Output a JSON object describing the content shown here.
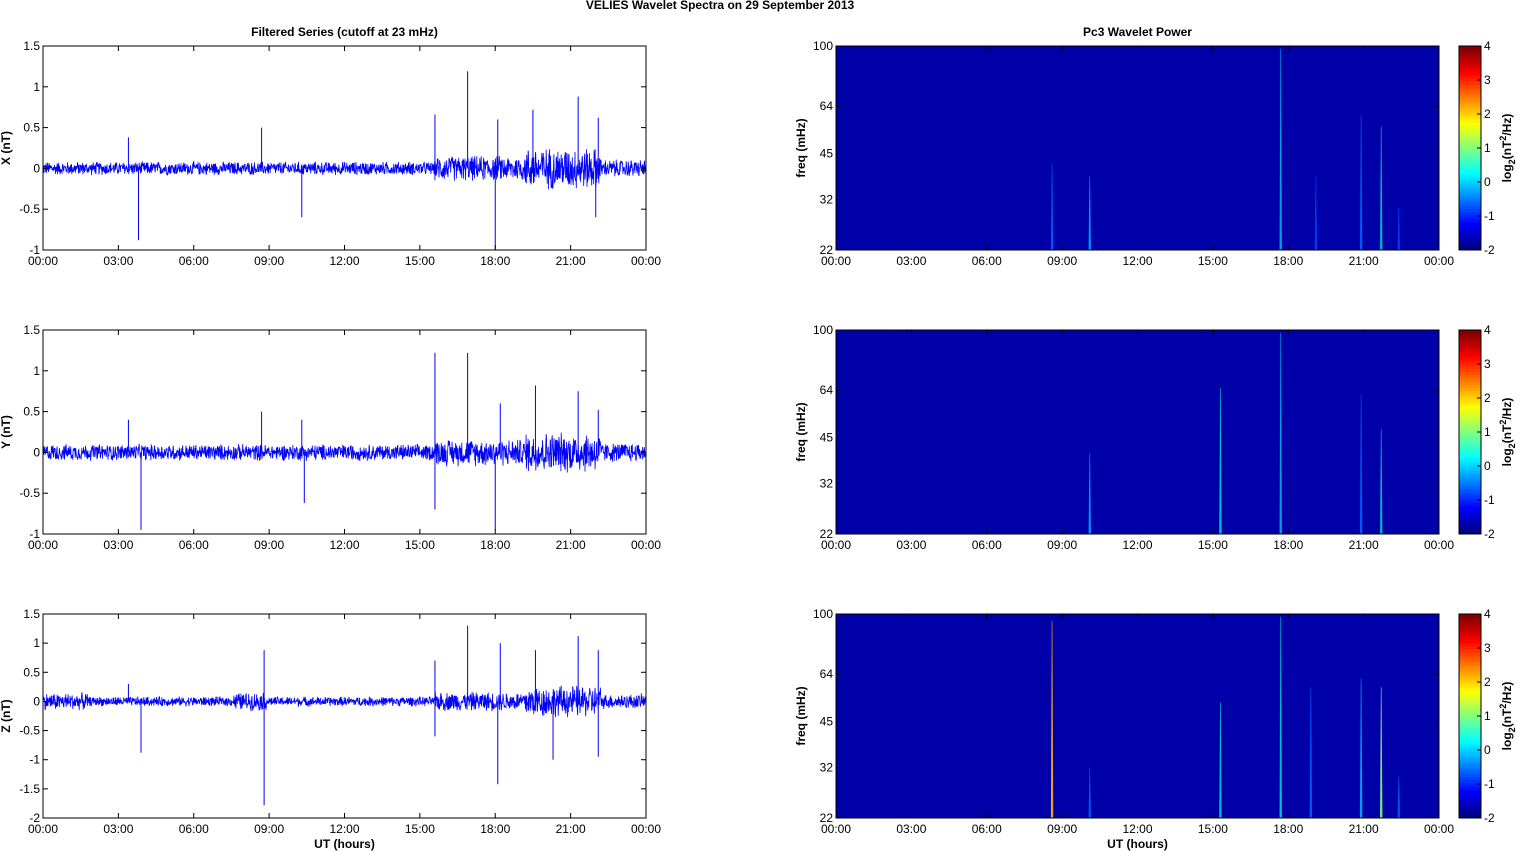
{
  "title": "VELIES Wavelet Spectra on 29 September 2013",
  "chart_data": [
    {
      "id": "filt-x",
      "type": "line",
      "title": "Filtered Series (cutoff at 23 mHz)",
      "ylabel": "X (nT)",
      "xlabel": "",
      "xlim": [
        0,
        24
      ],
      "ylim": [
        -1,
        1.5
      ],
      "yticks": [
        -1,
        -0.5,
        0,
        0.5,
        1,
        1.5
      ],
      "xticklabels": [
        "00:00",
        "03:00",
        "06:00",
        "09:00",
        "12:00",
        "15:00",
        "18:00",
        "21:00",
        "00:00"
      ],
      "color": "#0000ff",
      "envelope": [
        {
          "from": 0,
          "to": 15.6,
          "amp": 0.09
        },
        {
          "from": 15.6,
          "to": 19.2,
          "amp": 0.17
        },
        {
          "from": 19.2,
          "to": 22.2,
          "amp": 0.28
        },
        {
          "from": 22.2,
          "to": 24,
          "amp": 0.12
        }
      ],
      "spikes": [
        {
          "x": 3.4,
          "y": 0.38
        },
        {
          "x": 3.8,
          "y": -0.88
        },
        {
          "x": 8.7,
          "y": 0.5
        },
        {
          "x": 10.3,
          "y": -0.6
        },
        {
          "x": 15.6,
          "y": 0.66
        },
        {
          "x": 16.9,
          "y": 1.19
        },
        {
          "x": 18.0,
          "y": -1.0
        },
        {
          "x": 18.1,
          "y": 0.6
        },
        {
          "x": 19.5,
          "y": 0.72
        },
        {
          "x": 21.3,
          "y": 0.88
        },
        {
          "x": 22.1,
          "y": 0.62
        },
        {
          "x": 22.0,
          "y": -0.6
        }
      ]
    },
    {
      "id": "filt-y",
      "type": "line",
      "title": "",
      "ylabel": "Y (nT)",
      "xlabel": "",
      "xlim": [
        0,
        24
      ],
      "ylim": [
        -1,
        1.5
      ],
      "yticks": [
        -1,
        -0.5,
        0,
        0.5,
        1,
        1.5
      ],
      "xticklabels": [
        "00:00",
        "03:00",
        "06:00",
        "09:00",
        "12:00",
        "15:00",
        "18:00",
        "21:00",
        "00:00"
      ],
      "color": "#0000ff",
      "envelope": [
        {
          "from": 0,
          "to": 15.6,
          "amp": 0.11
        },
        {
          "from": 15.6,
          "to": 19.2,
          "amp": 0.18
        },
        {
          "from": 19.2,
          "to": 22.2,
          "amp": 0.27
        },
        {
          "from": 22.2,
          "to": 24,
          "amp": 0.13
        }
      ],
      "spikes": [
        {
          "x": 3.4,
          "y": 0.4
        },
        {
          "x": 3.9,
          "y": -0.95
        },
        {
          "x": 8.7,
          "y": 0.5
        },
        {
          "x": 10.3,
          "y": 0.4
        },
        {
          "x": 10.4,
          "y": -0.62
        },
        {
          "x": 15.6,
          "y": 1.22
        },
        {
          "x": 15.6,
          "y": -0.7
        },
        {
          "x": 16.9,
          "y": 1.22
        },
        {
          "x": 18.0,
          "y": -0.95
        },
        {
          "x": 18.2,
          "y": 0.6
        },
        {
          "x": 19.6,
          "y": 0.82
        },
        {
          "x": 21.3,
          "y": 0.75
        },
        {
          "x": 22.1,
          "y": 0.52
        }
      ]
    },
    {
      "id": "filt-z",
      "type": "line",
      "title": "",
      "ylabel": "Z (nT)",
      "xlabel": "UT (hours)",
      "xlim": [
        0,
        24
      ],
      "ylim": [
        -2,
        1.5
      ],
      "yticks": [
        -2,
        -1.5,
        -1,
        -0.5,
        0,
        0.5,
        1,
        1.5
      ],
      "xticklabels": [
        "00:00",
        "03:00",
        "06:00",
        "09:00",
        "12:00",
        "15:00",
        "18:00",
        "21:00",
        "00:00"
      ],
      "color": "#0000ff",
      "envelope": [
        {
          "from": 0,
          "to": 1.8,
          "amp": 0.16
        },
        {
          "from": 1.8,
          "to": 7.6,
          "amp": 0.09
        },
        {
          "from": 7.6,
          "to": 8.9,
          "amp": 0.17
        },
        {
          "from": 8.9,
          "to": 15.6,
          "amp": 0.09
        },
        {
          "from": 15.6,
          "to": 19.2,
          "amp": 0.18
        },
        {
          "from": 19.2,
          "to": 22.2,
          "amp": 0.3
        },
        {
          "from": 22.2,
          "to": 24,
          "amp": 0.14
        }
      ],
      "spikes": [
        {
          "x": 3.4,
          "y": 0.3
        },
        {
          "x": 3.9,
          "y": -0.88
        },
        {
          "x": 8.8,
          "y": 0.88
        },
        {
          "x": 8.8,
          "y": -1.78
        },
        {
          "x": 15.6,
          "y": 0.7
        },
        {
          "x": 15.6,
          "y": -0.6
        },
        {
          "x": 16.9,
          "y": 1.3
        },
        {
          "x": 18.1,
          "y": -1.42
        },
        {
          "x": 18.2,
          "y": 1.0
        },
        {
          "x": 19.6,
          "y": 0.88
        },
        {
          "x": 21.3,
          "y": 1.12
        },
        {
          "x": 22.1,
          "y": 0.88
        },
        {
          "x": 22.1,
          "y": -0.95
        },
        {
          "x": 20.3,
          "y": -1.0
        }
      ]
    },
    {
      "id": "wav-x",
      "type": "heatmap",
      "title": "Pc3 Wavelet Power",
      "ylabel": "freq (mHz)",
      "xlabel": "",
      "xlim": [
        0,
        24
      ],
      "ylim": [
        22,
        100
      ],
      "yscale": "log",
      "yticks": [
        22,
        32,
        45,
        64,
        100
      ],
      "xticklabels": [
        "00:00",
        "03:00",
        "06:00",
        "09:00",
        "12:00",
        "15:00",
        "18:00",
        "21:00",
        "00:00"
      ],
      "background": "#0000a8",
      "clim": [
        -2,
        4
      ],
      "cticks": [
        -2,
        -1,
        0,
        1,
        2,
        3,
        4
      ],
      "colorbar_label": "log2(nT2/Hz)",
      "streaks": [
        {
          "t": 8.6,
          "fmin": 22,
          "fmax": 42,
          "color": "#0060ff"
        },
        {
          "t": 10.1,
          "fmin": 22,
          "fmax": 38,
          "color": "#00a0ff"
        },
        {
          "t": 17.7,
          "fmin": 22,
          "fmax": 98,
          "color": "#00b0e0"
        },
        {
          "t": 19.1,
          "fmin": 22,
          "fmax": 38,
          "color": "#0040ff"
        },
        {
          "t": 20.9,
          "fmin": 22,
          "fmax": 60,
          "color": "#0060ff"
        },
        {
          "t": 21.7,
          "fmin": 22,
          "fmax": 55,
          "color": "#00c8c8"
        },
        {
          "t": 22.4,
          "fmin": 22,
          "fmax": 30,
          "color": "#0040ff"
        }
      ]
    },
    {
      "id": "wav-y",
      "type": "heatmap",
      "title": "",
      "ylabel": "freq (mHz)",
      "xlabel": "",
      "xlim": [
        0,
        24
      ],
      "ylim": [
        22,
        100
      ],
      "yscale": "log",
      "yticks": [
        22,
        32,
        45,
        64,
        100
      ],
      "xticklabels": [
        "00:00",
        "03:00",
        "06:00",
        "09:00",
        "12:00",
        "15:00",
        "18:00",
        "21:00",
        "00:00"
      ],
      "background": "#0000a8",
      "clim": [
        -2,
        4
      ],
      "cticks": [
        -2,
        -1,
        0,
        1,
        2,
        3,
        4
      ],
      "colorbar_label": "log2(nT2/Hz)",
      "streaks": [
        {
          "t": 10.1,
          "fmin": 22,
          "fmax": 40,
          "color": "#00a0ff"
        },
        {
          "t": 15.3,
          "fmin": 22,
          "fmax": 65,
          "color": "#00d0d0"
        },
        {
          "t": 17.7,
          "fmin": 22,
          "fmax": 98,
          "color": "#00b0e0"
        },
        {
          "t": 20.9,
          "fmin": 22,
          "fmax": 62,
          "color": "#0060ff"
        },
        {
          "t": 21.7,
          "fmin": 22,
          "fmax": 48,
          "color": "#00c8c8"
        }
      ]
    },
    {
      "id": "wav-z",
      "type": "heatmap",
      "title": "",
      "ylabel": "freq (mHz)",
      "xlabel": "UT (hours)",
      "xlim": [
        0,
        24
      ],
      "ylim": [
        22,
        100
      ],
      "yscale": "log",
      "yticks": [
        22,
        32,
        45,
        64,
        100
      ],
      "xticklabels": [
        "00:00",
        "03:00",
        "06:00",
        "09:00",
        "12:00",
        "15:00",
        "18:00",
        "21:00",
        "00:00"
      ],
      "background": "#0000a8",
      "clim": [
        -2,
        4
      ],
      "cticks": [
        -2,
        -1,
        0,
        1,
        2,
        3,
        4
      ],
      "colorbar_label": "log2(nT2/Hz)",
      "streaks": [
        {
          "t": 8.6,
          "fmin": 22,
          "fmax": 95,
          "color": "#ffb020"
        },
        {
          "t": 10.1,
          "fmin": 22,
          "fmax": 32,
          "color": "#0060ff"
        },
        {
          "t": 15.3,
          "fmin": 22,
          "fmax": 52,
          "color": "#00d0d0"
        },
        {
          "t": 17.7,
          "fmin": 22,
          "fmax": 98,
          "color": "#00d0d0"
        },
        {
          "t": 18.9,
          "fmin": 22,
          "fmax": 58,
          "color": "#0060ff"
        },
        {
          "t": 20.9,
          "fmin": 22,
          "fmax": 62,
          "color": "#00b0ff"
        },
        {
          "t": 21.7,
          "fmin": 22,
          "fmax": 58,
          "color": "#80ff80"
        },
        {
          "t": 22.4,
          "fmin": 22,
          "fmax": 30,
          "color": "#0060ff"
        }
      ]
    }
  ]
}
